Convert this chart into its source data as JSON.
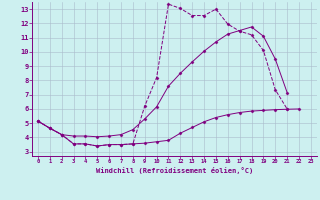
{
  "xlabel": "Windchill (Refroidissement éolien,°C)",
  "bg_color": "#cdf0f0",
  "line_color": "#800080",
  "grid_color": "#aabbcc",
  "xlim": [
    -0.5,
    23.5
  ],
  "ylim": [
    2.7,
    13.5
  ],
  "xticks": [
    0,
    1,
    2,
    3,
    4,
    5,
    6,
    7,
    8,
    9,
    10,
    11,
    12,
    13,
    14,
    15,
    16,
    17,
    18,
    19,
    20,
    21,
    22,
    23
  ],
  "yticks": [
    3,
    4,
    5,
    6,
    7,
    8,
    9,
    10,
    11,
    12,
    13
  ],
  "series": [
    {
      "linestyle": "--",
      "x": [
        0,
        1,
        2,
        3,
        4,
        5,
        6,
        7,
        8,
        9,
        10,
        11,
        12,
        13,
        14,
        15,
        16,
        17,
        18,
        19,
        20,
        21
      ],
      "y": [
        5.15,
        4.65,
        4.2,
        3.55,
        3.55,
        3.4,
        3.5,
        3.5,
        3.55,
        6.2,
        8.2,
        13.35,
        13.05,
        12.55,
        12.55,
        13.0,
        11.95,
        11.45,
        11.2,
        10.1,
        7.35,
        6.0
      ]
    },
    {
      "linestyle": "-",
      "x": [
        0,
        1,
        2,
        3,
        4,
        5,
        6,
        7,
        8,
        9,
        10,
        11,
        12,
        13,
        14,
        15,
        16,
        17,
        18,
        19,
        20,
        21
      ],
      "y": [
        5.15,
        4.65,
        4.2,
        4.1,
        4.1,
        4.05,
        4.1,
        4.2,
        4.55,
        5.3,
        6.15,
        7.6,
        8.5,
        9.3,
        10.05,
        10.7,
        11.25,
        11.5,
        11.75,
        11.1,
        9.5,
        7.15
      ]
    },
    {
      "linestyle": "-",
      "x": [
        0,
        1,
        2,
        3,
        4,
        5,
        6,
        7,
        8,
        9,
        10,
        11,
        12,
        13,
        14,
        15,
        16,
        17,
        18,
        19,
        20,
        21,
        22
      ],
      "y": [
        5.15,
        4.65,
        4.2,
        3.55,
        3.55,
        3.4,
        3.5,
        3.5,
        3.55,
        3.6,
        3.7,
        3.8,
        4.3,
        4.7,
        5.1,
        5.4,
        5.6,
        5.75,
        5.85,
        5.9,
        5.95,
        5.98,
        6.0
      ]
    }
  ]
}
